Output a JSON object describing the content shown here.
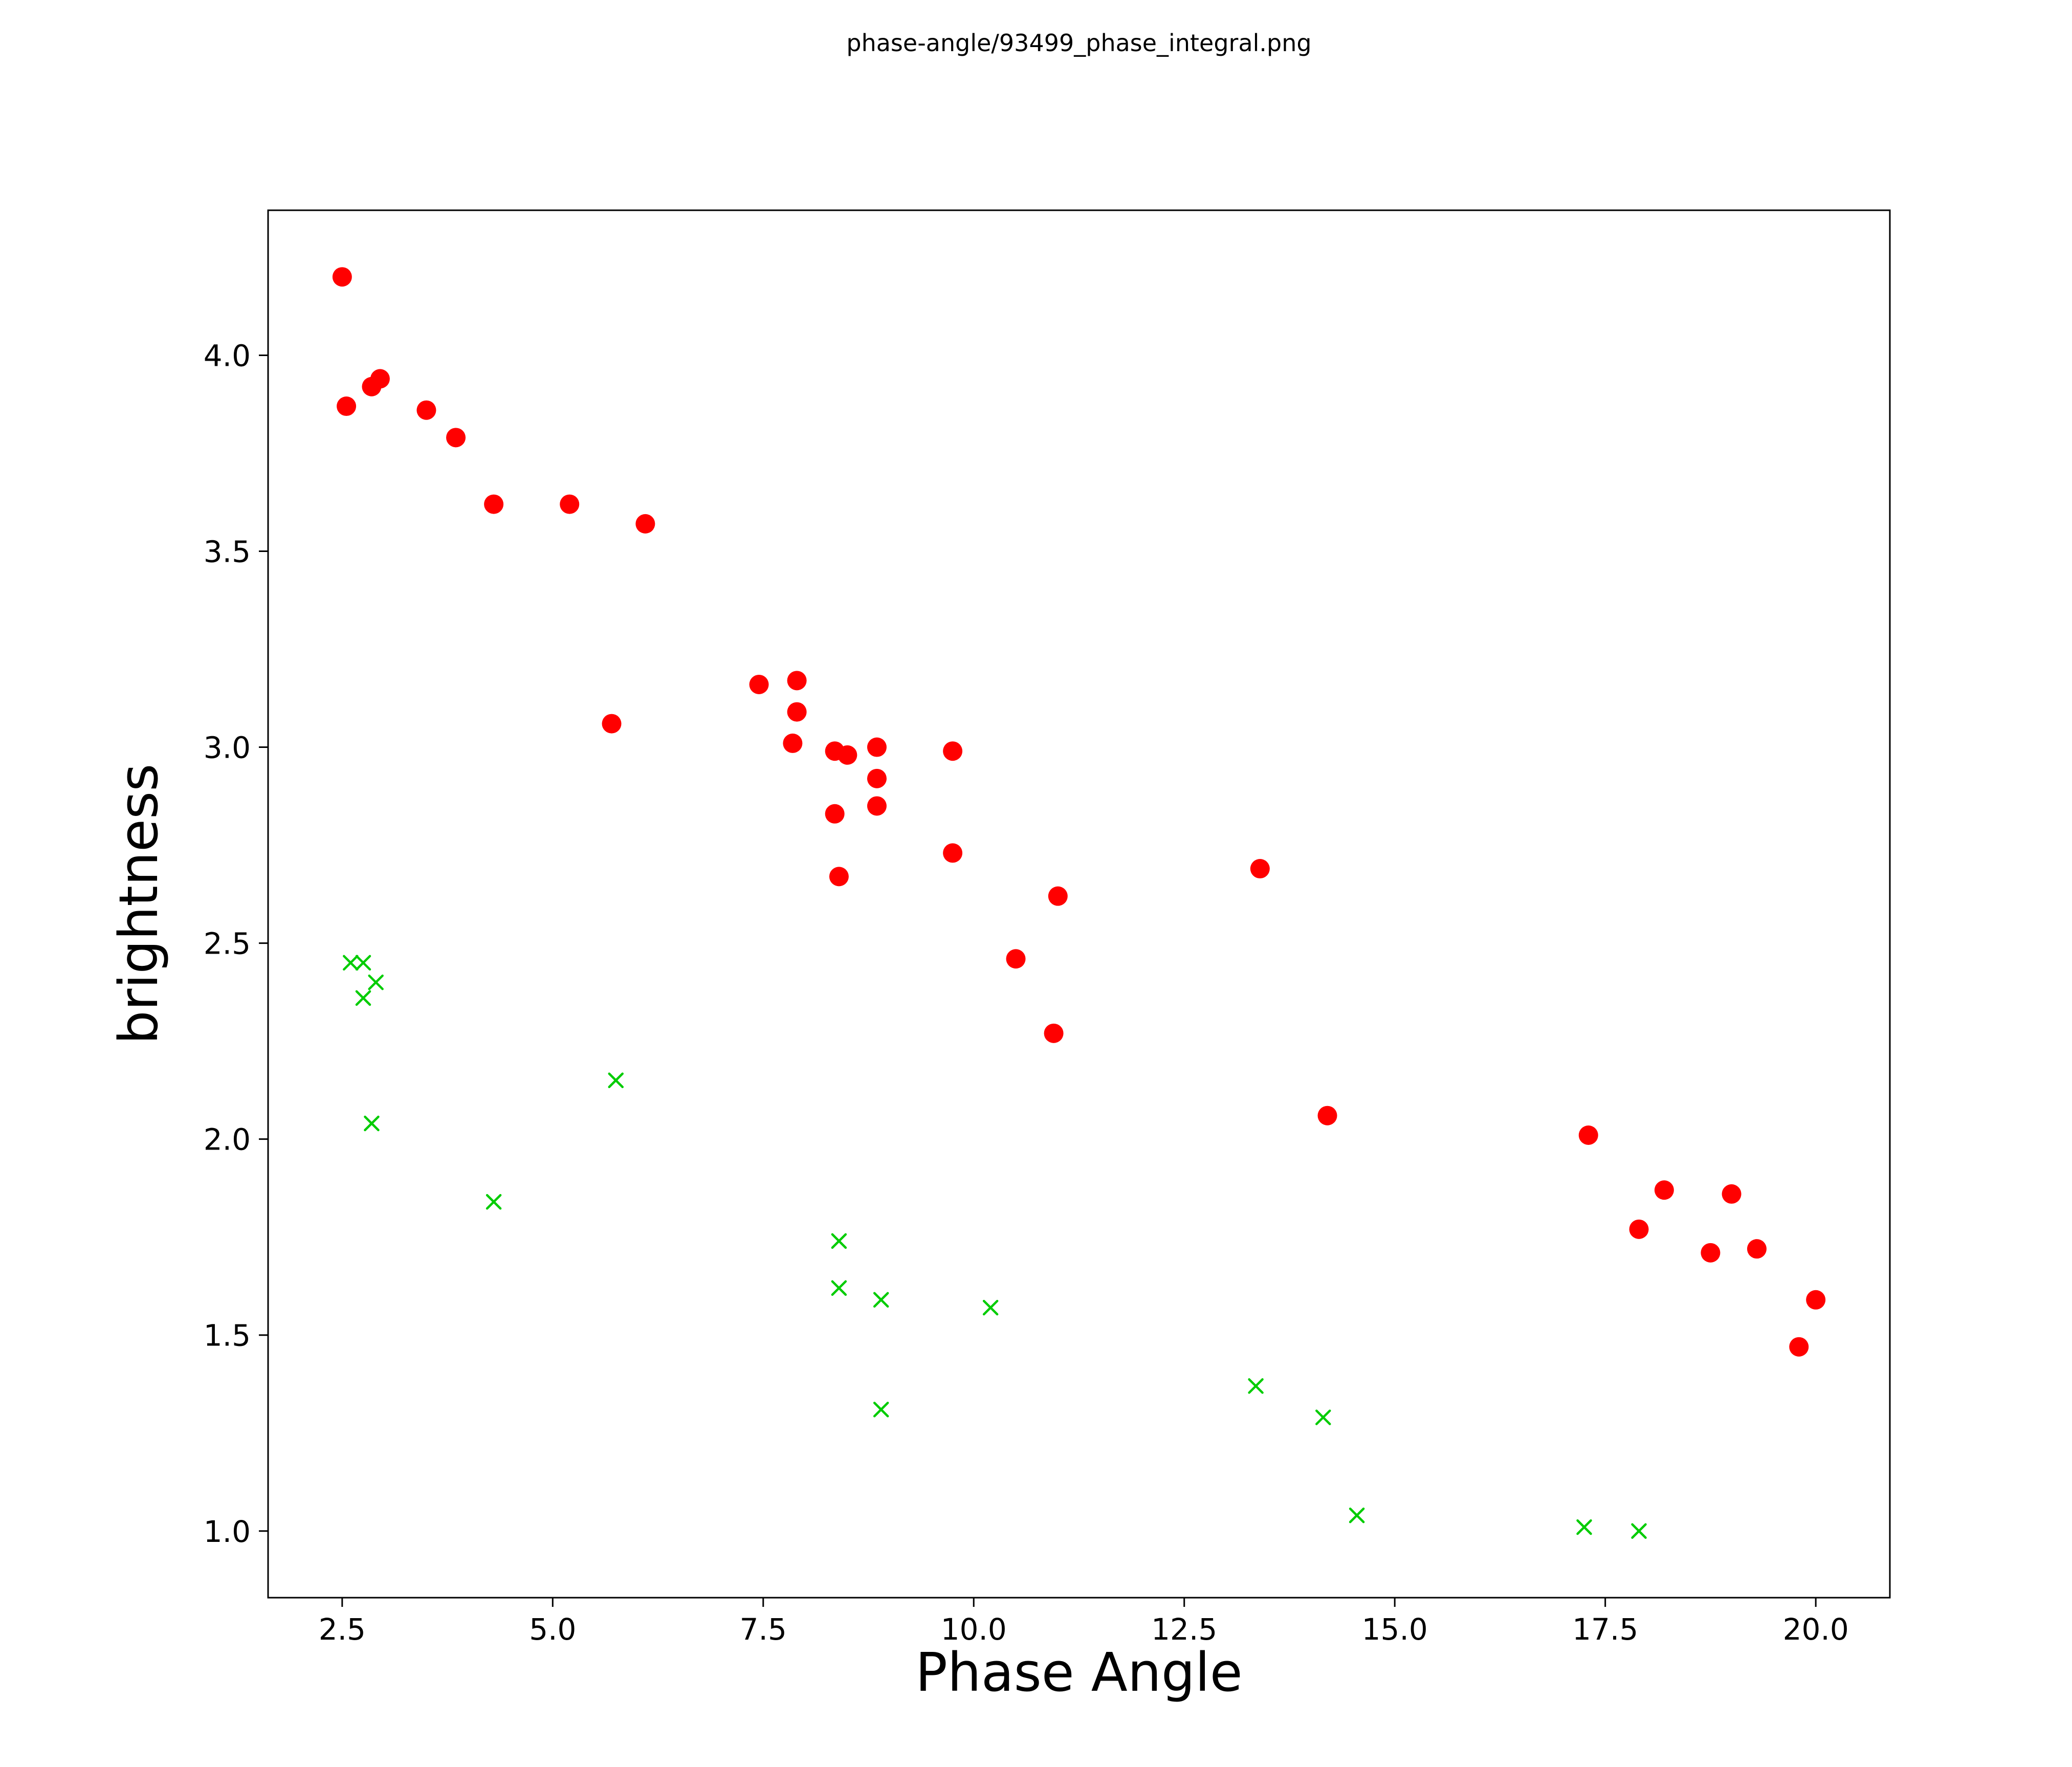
{
  "title": "phase-angle/93499_phase_integral.png",
  "chart_data": {
    "type": "scatter",
    "title": "phase-angle/93499_phase_integral.png",
    "xlabel": "Phase Angle",
    "ylabel": "brightness",
    "xlim": [
      1.62,
      20.88
    ],
    "ylim": [
      0.83,
      4.37
    ],
    "xticks": [
      2.5,
      5.0,
      7.5,
      10.0,
      12.5,
      15.0,
      17.5,
      20.0
    ],
    "yticks": [
      1.0,
      1.5,
      2.0,
      2.5,
      3.0,
      3.5,
      4.0
    ],
    "grid": false,
    "legend": null,
    "series": [
      {
        "name": "red-circles",
        "marker": "circle",
        "color": "#ff0000",
        "points": [
          [
            2.5,
            4.2
          ],
          [
            2.55,
            3.87
          ],
          [
            2.85,
            3.92
          ],
          [
            2.95,
            3.94
          ],
          [
            3.5,
            3.86
          ],
          [
            3.85,
            3.79
          ],
          [
            4.3,
            3.62
          ],
          [
            5.2,
            3.62
          ],
          [
            6.1,
            3.57
          ],
          [
            5.7,
            3.06
          ],
          [
            7.45,
            3.16
          ],
          [
            7.9,
            3.17
          ],
          [
            7.9,
            3.09
          ],
          [
            7.85,
            3.01
          ],
          [
            8.35,
            2.99
          ],
          [
            8.5,
            2.98
          ],
          [
            8.85,
            3.0
          ],
          [
            8.85,
            2.92
          ],
          [
            8.85,
            2.85
          ],
          [
            8.35,
            2.83
          ],
          [
            8.4,
            2.67
          ],
          [
            9.75,
            2.99
          ],
          [
            9.75,
            2.73
          ],
          [
            10.5,
            2.46
          ],
          [
            11.0,
            2.62
          ],
          [
            10.95,
            2.27
          ],
          [
            13.4,
            2.69
          ],
          [
            14.2,
            2.06
          ],
          [
            17.3,
            2.01
          ],
          [
            17.9,
            1.77
          ],
          [
            18.2,
            1.87
          ],
          [
            18.75,
            1.71
          ],
          [
            19.0,
            1.86
          ],
          [
            19.3,
            1.72
          ],
          [
            20.0,
            1.59
          ],
          [
            19.8,
            1.47
          ]
        ]
      },
      {
        "name": "green-crosses",
        "marker": "x",
        "color": "#00cc00",
        "points": [
          [
            2.6,
            2.45
          ],
          [
            2.75,
            2.45
          ],
          [
            2.75,
            2.36
          ],
          [
            2.9,
            2.4
          ],
          [
            2.85,
            2.04
          ],
          [
            4.3,
            1.84
          ],
          [
            5.75,
            2.15
          ],
          [
            8.4,
            1.74
          ],
          [
            8.4,
            1.62
          ],
          [
            8.9,
            1.59
          ],
          [
            8.9,
            1.31
          ],
          [
            10.2,
            1.57
          ],
          [
            13.35,
            1.37
          ],
          [
            14.15,
            1.29
          ],
          [
            14.55,
            1.04
          ],
          [
            17.25,
            1.01
          ],
          [
            17.9,
            1.0
          ]
        ]
      }
    ]
  }
}
